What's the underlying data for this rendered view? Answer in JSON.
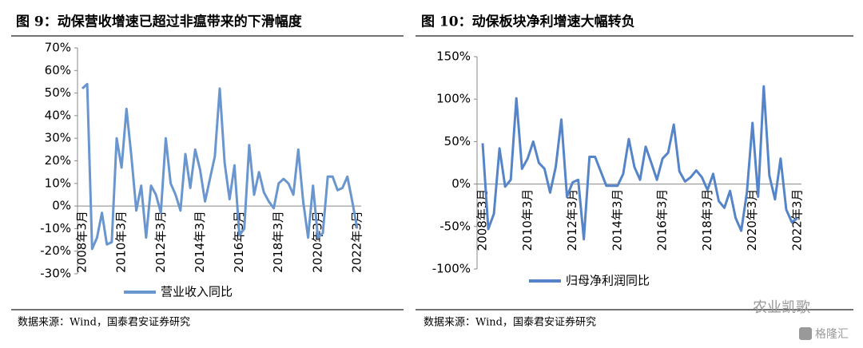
{
  "chart_data": [
    {
      "type": "line",
      "title": "图 9：动保营收增速已超过非瘟带来的下滑幅度",
      "source": "数据来源：Wind，国泰君安证券研究",
      "categories": [
        "2008年3月",
        null,
        null,
        null,
        null,
        null,
        null,
        null,
        "2010年3月",
        null,
        null,
        null,
        null,
        null,
        null,
        null,
        "2012年3月",
        null,
        null,
        null,
        null,
        null,
        null,
        null,
        "2014年3月",
        null,
        null,
        null,
        null,
        null,
        null,
        null,
        "2016年3月",
        null,
        null,
        null,
        null,
        null,
        null,
        null,
        "2018年3月",
        null,
        null,
        null,
        null,
        null,
        null,
        null,
        "2020年3月",
        null,
        null,
        null,
        null,
        null,
        null,
        null,
        "2022年3月"
      ],
      "series": [
        {
          "name": "营业收入同比",
          "color": "#6a96cf",
          "values": [
            52,
            54,
            -19,
            -14,
            -3,
            -17,
            -16,
            30,
            17,
            43,
            22,
            -2,
            9,
            -14,
            9,
            5,
            -3,
            30,
            10,
            5,
            -2,
            23,
            8,
            25,
            16,
            2,
            12,
            22,
            52,
            19,
            3,
            18,
            -13,
            -10,
            27,
            5,
            15,
            6,
            2,
            -1,
            10,
            12,
            10,
            5,
            25,
            2,
            -14,
            9,
            -14,
            -12,
            13,
            13,
            7,
            8,
            13,
            2,
            -10
          ]
        }
      ],
      "ylim": [
        -30,
        70
      ],
      "yticks": [
        {
          "value": -30,
          "label": "-30%"
        },
        {
          "value": -20,
          "label": "-20%"
        },
        {
          "value": -10,
          "label": "-10%"
        },
        {
          "value": 0,
          "label": "0%"
        },
        {
          "value": 10,
          "label": "10%"
        },
        {
          "value": 20,
          "label": "20%"
        },
        {
          "value": 30,
          "label": "30%"
        },
        {
          "value": 40,
          "label": "40%"
        },
        {
          "value": 50,
          "label": "50%"
        },
        {
          "value": 60,
          "label": "60%"
        },
        {
          "value": 70,
          "label": "70%"
        }
      ],
      "grid": false
    },
    {
      "type": "line",
      "title": "图 10：动保板块净利增速大幅转负",
      "source": "数据来源：Wind，国泰君安证券研究",
      "categories": [
        "2008年3月",
        null,
        null,
        null,
        null,
        null,
        null,
        null,
        "2010年3月",
        null,
        null,
        null,
        null,
        null,
        null,
        null,
        "2012年3月",
        null,
        null,
        null,
        null,
        null,
        null,
        null,
        "2014年3月",
        null,
        null,
        null,
        null,
        null,
        null,
        null,
        "2016年3月",
        null,
        null,
        null,
        null,
        null,
        null,
        null,
        "2018年3月",
        null,
        null,
        null,
        null,
        null,
        null,
        null,
        "2020年3月",
        null,
        null,
        null,
        null,
        null,
        null,
        null,
        "2022年3月"
      ],
      "series": [
        {
          "name": "归母净利润同比",
          "color": "#5585c8",
          "values": [
            48,
            -53,
            -35,
            42,
            -3,
            5,
            101,
            18,
            30,
            50,
            25,
            18,
            -10,
            20,
            76,
            -15,
            2,
            5,
            -65,
            32,
            32,
            15,
            -2,
            -2,
            -2,
            12,
            53,
            20,
            5,
            44,
            25,
            5,
            30,
            37,
            70,
            15,
            3,
            8,
            16,
            8,
            -7,
            12,
            -20,
            -28,
            -8,
            -40,
            -55,
            -10,
            72,
            -15,
            115,
            10,
            -18,
            30,
            -30,
            -45,
            -40
          ]
        }
      ],
      "ylim": [
        -100,
        150
      ],
      "yticks": [
        {
          "value": -100,
          "label": "-100%"
        },
        {
          "value": -50,
          "label": "-50%"
        },
        {
          "value": 0,
          "label": "0%"
        },
        {
          "value": 50,
          "label": "50%"
        },
        {
          "value": 100,
          "label": "100%"
        },
        {
          "value": 150,
          "label": "150%"
        }
      ],
      "grid": false
    }
  ],
  "watermark": {
    "account": "农业凯歌",
    "logo": "格隆汇"
  }
}
